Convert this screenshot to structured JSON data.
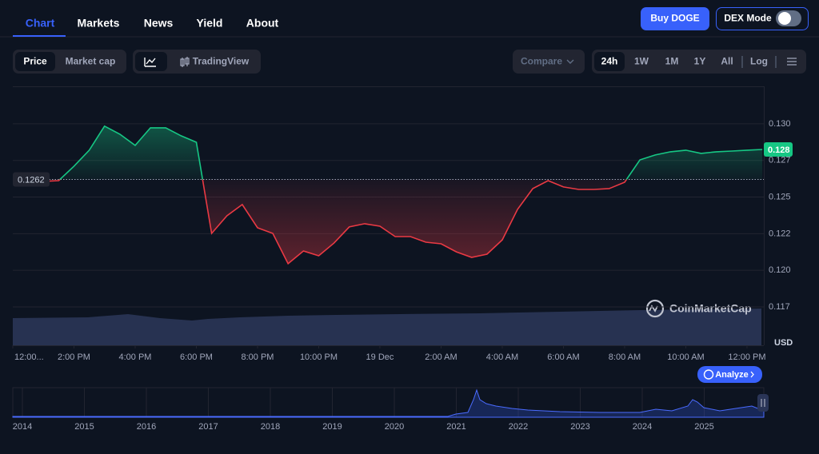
{
  "nav": {
    "tabs": [
      "Chart",
      "Markets",
      "News",
      "Yield",
      "About"
    ]
  },
  "buttons": {
    "buy": "Buy DOGE",
    "dex_mode": "DEX Mode"
  },
  "toolbar": {
    "metric": [
      "Price",
      "Market cap"
    ],
    "tradingview": "TradingView",
    "compare": "Compare",
    "ranges": [
      "24h",
      "1W",
      "1M",
      "1Y",
      "All"
    ],
    "log": "Log"
  },
  "chart_data": {
    "type": "line",
    "x": [
      12,
      12.5,
      13,
      13.5,
      14,
      14.5,
      15,
      15.5,
      16,
      16.5,
      17,
      17.5,
      18,
      18.5,
      19,
      19.5,
      20,
      20.5,
      21,
      21.5,
      22,
      22.5,
      23,
      23.5,
      24,
      24.5,
      25,
      25.5,
      26,
      26.5,
      27,
      27.5,
      28,
      28.5,
      29,
      29.5,
      30,
      30.5,
      31,
      31.5,
      32,
      32.5,
      33,
      33.5,
      34,
      34.5,
      35,
      35.5,
      36,
      36.5
    ],
    "values": [
      0.12612,
      0.12612,
      0.12607,
      0.12612,
      0.12711,
      0.1282,
      0.12984,
      0.12929,
      0.12853,
      0.12973,
      0.12973,
      0.12918,
      0.12874,
      0.12252,
      0.12372,
      0.12449,
      0.1229,
      0.12252,
      0.12045,
      0.12132,
      0.12099,
      0.12186,
      0.12296,
      0.12318,
      0.12301,
      0.1223,
      0.1223,
      0.12192,
      0.12181,
      0.12126,
      0.12088,
      0.1211,
      0.12208,
      0.12416,
      0.12558,
      0.12612,
      0.12569,
      0.12552,
      0.12552,
      0.12558,
      0.12601,
      0.12754,
      0.12787,
      0.12809,
      0.1282,
      0.12798,
      0.12809,
      0.12814,
      0.1282,
      0.12825
    ],
    "xlim": [
      12,
      36.55
    ],
    "ylim": [
      0.11488,
      0.13256
    ],
    "xticks": [
      {
        "value": 12,
        "label": "12:00..."
      },
      {
        "value": 14,
        "label": "2:00 PM"
      },
      {
        "value": 16,
        "label": "4:00 PM"
      },
      {
        "value": 18,
        "label": "6:00 PM"
      },
      {
        "value": 20,
        "label": "8:00 PM"
      },
      {
        "value": 22,
        "label": "10:00 PM"
      },
      {
        "value": 24,
        "label": "19 Dec"
      },
      {
        "value": 26,
        "label": "2:00 AM"
      },
      {
        "value": 28,
        "label": "4:00 AM"
      },
      {
        "value": 30,
        "label": "6:00 AM"
      },
      {
        "value": 32,
        "label": "8:00 AM"
      },
      {
        "value": 34,
        "label": "10:00 AM"
      },
      {
        "value": 36,
        "label": "12:00 PM"
      }
    ],
    "yticks": [
      {
        "value": 0.13,
        "label": "0.130"
      },
      {
        "value": 0.1275,
        "label": "0.127"
      },
      {
        "value": 0.125,
        "label": "0.125"
      },
      {
        "value": 0.1225,
        "label": "0.122"
      },
      {
        "value": 0.12,
        "label": "0.120"
      },
      {
        "value": 0.1175,
        "label": "0.117"
      }
    ],
    "reference": 0.1262,
    "current": {
      "value": 0.12825,
      "label": "0.128"
    },
    "unit": "USD",
    "grid": true,
    "colors": {
      "up": "#16c784",
      "down": "#ea3943"
    }
  },
  "watermark": "CoinMarketCap",
  "analyze": "Analyze",
  "navigator": {
    "years": [
      "2014",
      "2015",
      "2016",
      "2017",
      "2018",
      "2019",
      "2020",
      "2021",
      "2022",
      "2023",
      "2024",
      "2025"
    ]
  }
}
